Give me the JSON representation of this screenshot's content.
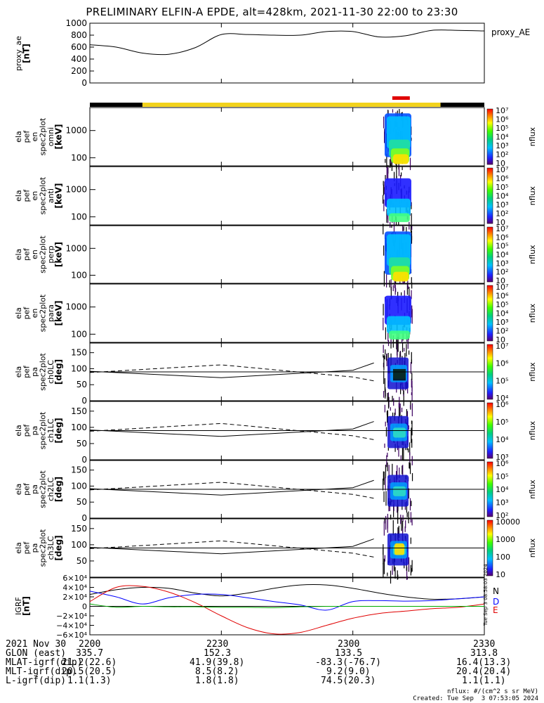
{
  "title": "PRELIMINARY ELFIN-A EPDE, alt=428km, 2021-11-30 22:00 to 23:30",
  "time_ticks": [
    "2200",
    "2230",
    "2300",
    "2330"
  ],
  "footer": {
    "rows": [
      {
        "label": "2021 Nov 30",
        "values": [
          "2200",
          "2230",
          "2300",
          "2330"
        ]
      },
      {
        "label": "GLON (east)",
        "values": [
          "335.7",
          "152.3",
          "133.5",
          "313.8"
        ]
      },
      {
        "label": "MLAT-igrf(dip)",
        "values": [
          "21.2(22.6)",
          "41.9(39.8)",
          "-83.3(-76.7)",
          "16.4(13.3)"
        ]
      },
      {
        "label": "MLT-igrf(dip)",
        "values": [
          "20.5(20.5)",
          "8.5(8.2)",
          "9.2(9.0)",
          "20.4(20.4)"
        ]
      },
      {
        "label": "L-igrf(dip)",
        "values": [
          "1.1(1.3)",
          "1.8(1.8)",
          "74.5(20.3)",
          "1.1(1.1)"
        ]
      }
    ],
    "units_note": "nflux: #/(cm^2 s sr MeV)",
    "created": "Created: Tue Sep  3 07:53:05 2024",
    "side_stamp": "Tue Sep  3 08:58:03 2024"
  },
  "chart_data": [
    {
      "type": "line",
      "name": "proxy_ae",
      "ylabel": [
        "proxy_ae",
        "[nT]"
      ],
      "legend": "proxy_AE",
      "ylim": [
        0,
        1000
      ],
      "yticks": [
        0,
        200,
        400,
        600,
        800,
        1000
      ],
      "x_hours": [
        0,
        0.1,
        0.2,
        0.3,
        0.4,
        0.5,
        0.6,
        0.7,
        0.8,
        0.9,
        1.0,
        1.1,
        1.2,
        1.3,
        1.4,
        1.5
      ],
      "values": [
        640,
        600,
        500,
        480,
        590,
        810,
        810,
        800,
        800,
        860,
        860,
        770,
        790,
        880,
        880,
        870
      ]
    },
    {
      "type": "bar",
      "name": "orbit-status-bar",
      "segments": [
        {
          "from": "2200",
          "to": "2212",
          "color": "#000000"
        },
        {
          "from": "2212",
          "to": "2320",
          "color": "#f2d21c"
        },
        {
          "from": "2320",
          "to": "2330",
          "color": "#000000"
        }
      ],
      "marker": {
        "from": "2309",
        "to": "2313",
        "color": "#e00000"
      }
    },
    {
      "type": "heatmap",
      "ylabel": [
        "ela",
        "pef",
        "en",
        "spec2plot",
        "omni",
        "[keV]"
      ],
      "scale": "log",
      "yticks": [
        100,
        1000
      ],
      "cbar_label": "nflux",
      "cbar_ticks": [
        "10",
        "10²",
        "10³",
        "10⁴",
        "10⁵",
        "10⁶",
        "10⁷"
      ]
    },
    {
      "type": "heatmap",
      "ylabel": [
        "ela",
        "pef",
        "en",
        "spec2plot",
        "anti",
        "[keV]"
      ],
      "scale": "log",
      "yticks": [
        100,
        1000
      ],
      "cbar_label": "nflux",
      "cbar_ticks": [
        "10",
        "10²",
        "10³",
        "10⁴",
        "10⁵",
        "10⁶",
        "10⁷"
      ]
    },
    {
      "type": "heatmap",
      "ylabel": [
        "ela",
        "pef",
        "en",
        "spec2plot",
        "perp",
        "[keV]"
      ],
      "scale": "log",
      "yticks": [
        100,
        1000
      ],
      "cbar_label": "nflux",
      "cbar_ticks": [
        "10",
        "10²",
        "10³",
        "10⁴",
        "10⁵",
        "10⁶",
        "10⁷"
      ]
    },
    {
      "type": "heatmap",
      "ylabel": [
        "ela",
        "pef",
        "en",
        "spec2plot",
        "para",
        "[keV]"
      ],
      "scale": "log",
      "yticks": [
        100,
        1000
      ],
      "cbar_label": "nflux",
      "cbar_ticks": [
        "10",
        "10²",
        "10³",
        "10⁴",
        "10⁵",
        "10⁶",
        "10⁷"
      ]
    },
    {
      "type": "heatmap",
      "ylabel": [
        "ela",
        "pef",
        "pa",
        "spec2plot",
        "ch0LC",
        "[deg]"
      ],
      "yticks": [
        0,
        50,
        100,
        150
      ],
      "ylim": [
        0,
        180
      ],
      "cbar_label": "nflux",
      "cbar_ticks": [
        "10⁴",
        "10⁵",
        "10⁶",
        "10⁷"
      ]
    },
    {
      "type": "heatmap",
      "ylabel": [
        "ela",
        "pef",
        "pa",
        "spec2plot",
        "ch1LC",
        "[deg]"
      ],
      "yticks": [
        0,
        50,
        100,
        150
      ],
      "ylim": [
        0,
        180
      ],
      "cbar_label": "nflux",
      "cbar_ticks": [
        "10³",
        "10⁴",
        "10⁵",
        "10⁶"
      ]
    },
    {
      "type": "heatmap",
      "ylabel": [
        "ela",
        "pef",
        "pa",
        "spec2plot",
        "ch2LC",
        "[deg]"
      ],
      "yticks": [
        0,
        50,
        100,
        150
      ],
      "ylim": [
        0,
        180
      ],
      "cbar_label": "nflux",
      "cbar_ticks": [
        "10²",
        "10³",
        "10⁴",
        "10⁵",
        "10⁶"
      ]
    },
    {
      "type": "heatmap",
      "ylabel": [
        "ela",
        "pef",
        "pa",
        "spec2plot",
        "ch3LC",
        "[deg]"
      ],
      "yticks": [
        50,
        100,
        150
      ],
      "ylim": [
        0,
        180
      ],
      "cbar_label": "nflux",
      "cbar_ticks": [
        "10",
        "100",
        "1000",
        "10000"
      ]
    },
    {
      "type": "line",
      "name": "igrf",
      "ylabel": [
        "IGRF",
        "[nT]"
      ],
      "ylim": [
        -60000,
        60000
      ],
      "yticks": [
        "−6×10⁴",
        "−4×10⁴",
        "−2×10⁴",
        "0",
        "2×10⁴",
        "4×10⁴",
        "6×10⁴"
      ],
      "x_hours": [
        0,
        0.1,
        0.2,
        0.3,
        0.4,
        0.5,
        0.6,
        0.7,
        0.8,
        0.9,
        1.0,
        1.1,
        1.2,
        1.3,
        1.4,
        1.5
      ],
      "series": [
        {
          "name": "N",
          "color": "#000000",
          "values": [
            25000,
            35000,
            40000,
            38000,
            28000,
            22000,
            28000,
            38000,
            45000,
            45000,
            38000,
            28000,
            20000,
            15000,
            16000,
            20000
          ]
        },
        {
          "name": "D",
          "color": "#0000ff",
          "values": [
            32000,
            20000,
            5000,
            18000,
            25000,
            25000,
            18000,
            10000,
            3000,
            -8000,
            10000,
            12000,
            11000,
            12000,
            16000,
            20000
          ]
        },
        {
          "name": "E",
          "color": "#e00000",
          "values": [
            10000,
            40000,
            42000,
            30000,
            8000,
            -20000,
            -45000,
            -58000,
            -55000,
            -40000,
            -25000,
            -15000,
            -10000,
            -5000,
            -2000,
            5000
          ]
        },
        {
          "name": "",
          "color": "#00aa00",
          "values": [
            5000,
            -2000,
            0,
            -1000,
            -1000,
            -2000,
            -2000,
            -3000,
            -1000,
            0,
            0,
            0,
            0,
            0,
            0,
            0
          ]
        }
      ]
    }
  ]
}
